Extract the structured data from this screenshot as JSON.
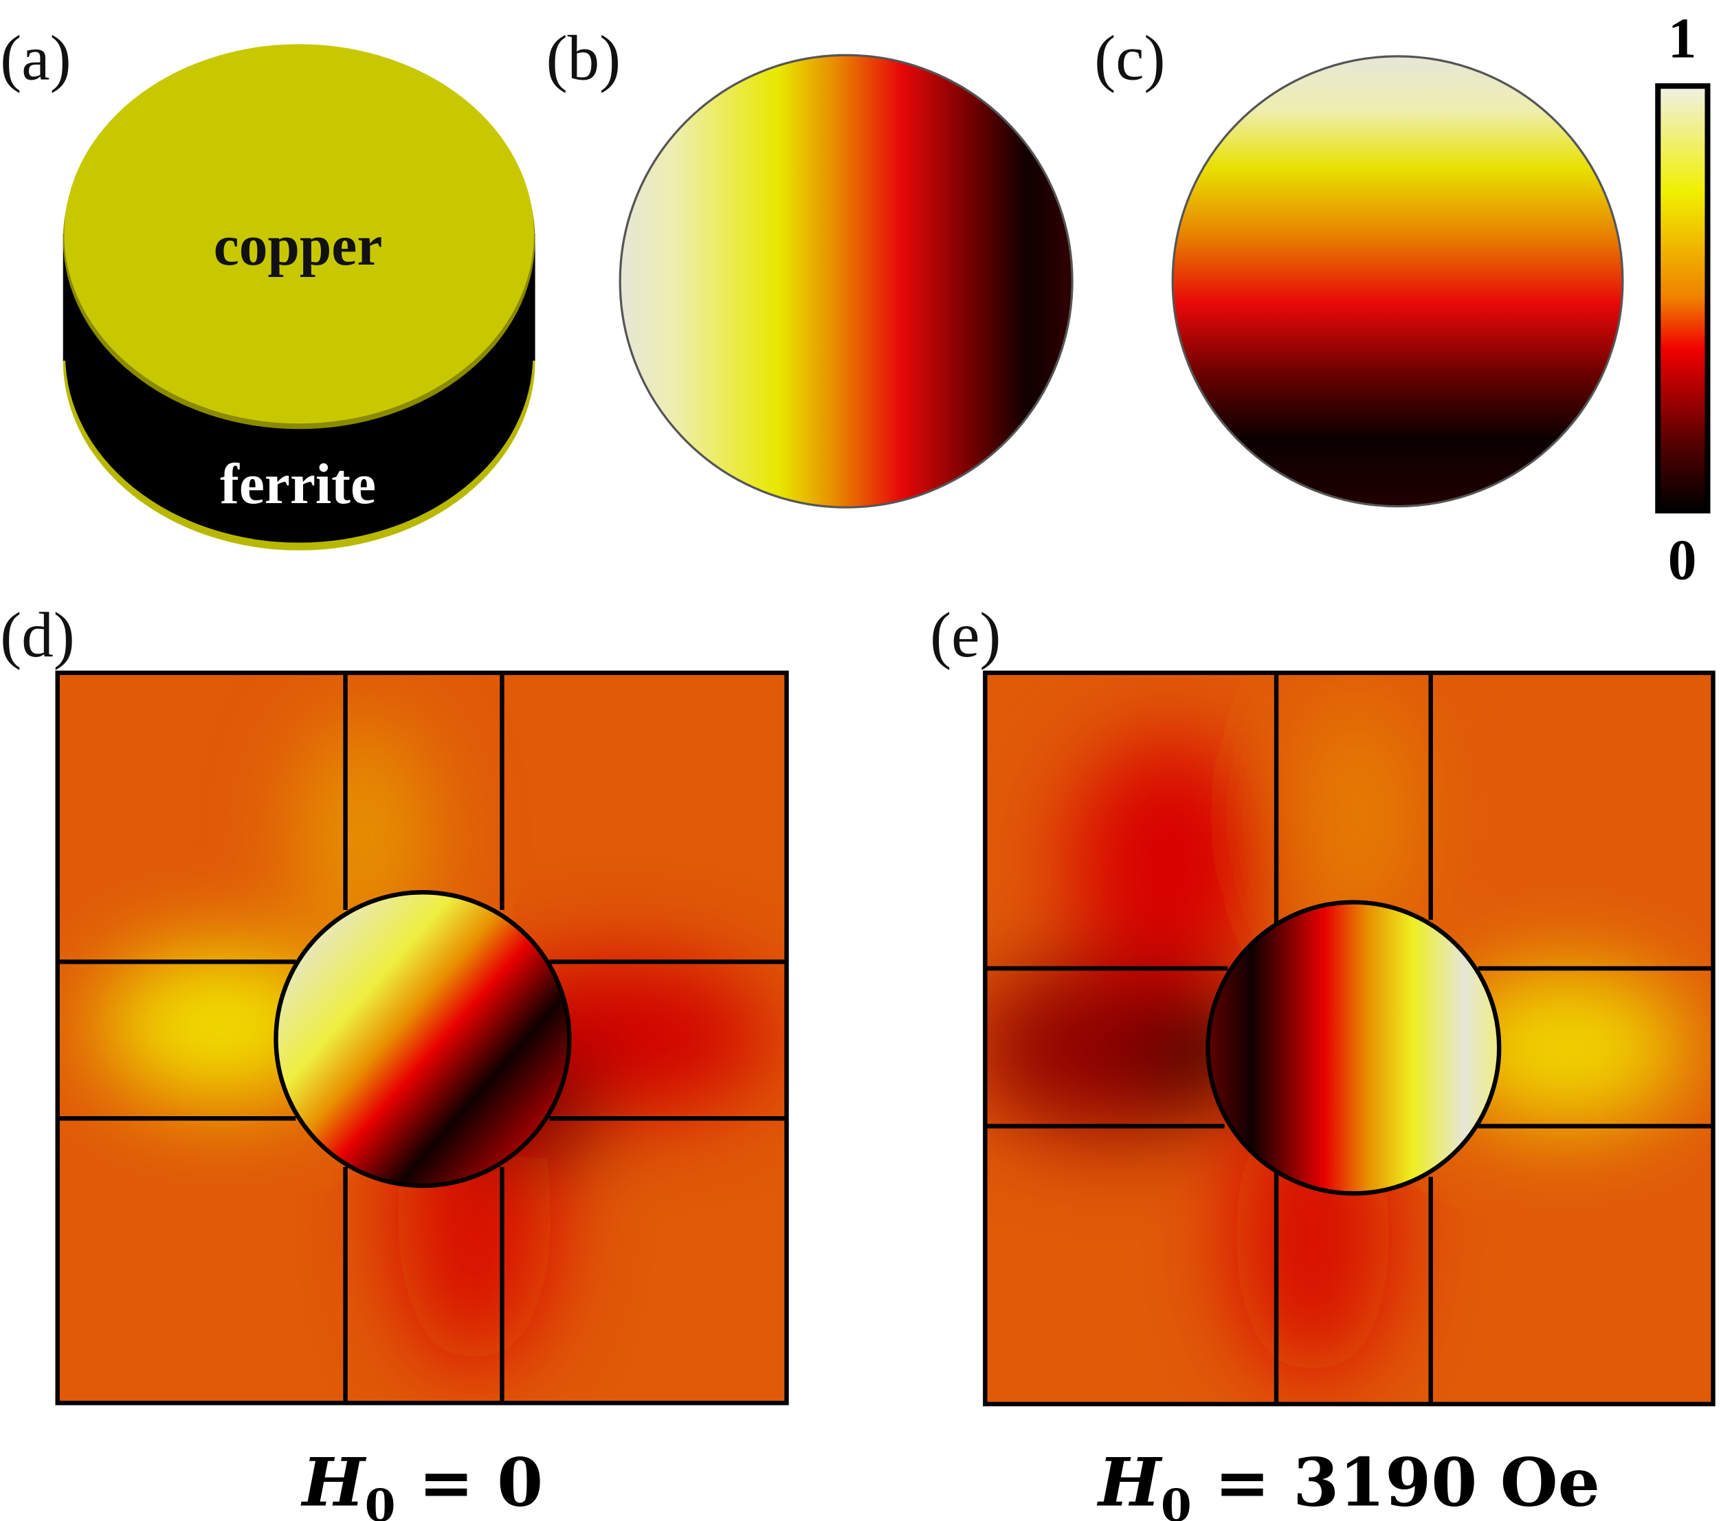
{
  "panels": [
    {
      "label": "(a)",
      "top_material": "copper",
      "bottom_material": "ferrite"
    },
    {
      "label": "(b)"
    },
    {
      "label": "(c)"
    },
    {
      "label": "(d)",
      "caption": {
        "symbol": "H",
        "subscript": "0",
        "rhs": " = 0"
      }
    },
    {
      "label": "(e)",
      "caption": {
        "symbol": "H",
        "subscript": "0",
        "rhs": " = 3190 Oe"
      }
    }
  ],
  "colorbar": {
    "top_label": "1",
    "bottom_label": "0"
  }
}
